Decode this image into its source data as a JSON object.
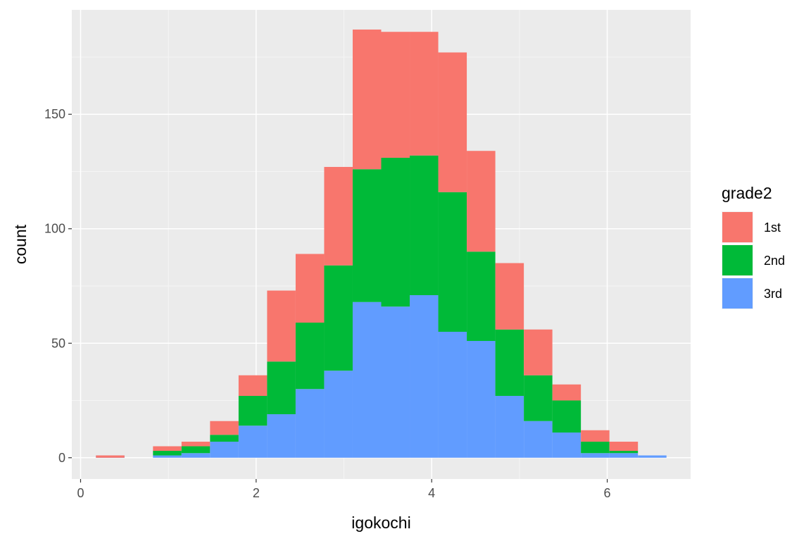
{
  "chart_data": {
    "type": "bar",
    "stacked": true,
    "histogram": true,
    "xlabel": "igokochi",
    "ylabel": "count",
    "xlim": [
      -0.1,
      6.95
    ],
    "ylim": [
      -9.3,
      195.6
    ],
    "x_ticks": [
      0,
      2,
      4,
      6
    ],
    "y_ticks": [
      0,
      50,
      100,
      150
    ],
    "x_tick_labels": [
      "0",
      "2",
      "4",
      "6"
    ],
    "y_tick_labels": [
      "0",
      "50",
      "100",
      "150"
    ],
    "bin_width": 0.325,
    "bins": [
      {
        "start": 0.175,
        "total": 1,
        "3rd": 1,
        "2nd": 0
      },
      {
        "start": 0.825,
        "total": 5,
        "3rd": 1,
        "2nd": 3
      },
      {
        "start": 1.15,
        "total": 7,
        "3rd": 2,
        "2nd": 5
      },
      {
        "start": 1.475,
        "total": 16,
        "3rd": 7,
        "2nd": 10
      },
      {
        "start": 1.8,
        "total": 36,
        "3rd": 14,
        "2nd": 27
      },
      {
        "start": 2.125,
        "total": 73,
        "3rd": 19,
        "2nd": 42
      },
      {
        "start": 2.45,
        "total": 89,
        "3rd": 30,
        "2nd": 59
      },
      {
        "start": 2.775,
        "total": 127,
        "3rd": 38,
        "2nd": 84
      },
      {
        "start": 3.1,
        "total": 187,
        "3rd": 68,
        "2nd": 126
      },
      {
        "start": 3.425,
        "total": 186,
        "3rd": 66,
        "2nd": 131
      },
      {
        "start": 3.75,
        "total": 186,
        "3rd": 71,
        "2nd": 132
      },
      {
        "start": 4.075,
        "total": 177,
        "3rd": 55,
        "2nd": 116
      },
      {
        "start": 4.4,
        "total": 134,
        "3rd": 51,
        "2nd": 90
      },
      {
        "start": 4.725,
        "total": 85,
        "3rd": 27,
        "2nd": 56
      },
      {
        "start": 5.05,
        "total": 56,
        "3rd": 16,
        "2nd": 36
      },
      {
        "start": 5.375,
        "total": 32,
        "3rd": 11,
        "2nd": 25
      },
      {
        "start": 5.7,
        "total": 12,
        "3rd": 2,
        "2nd": 7
      },
      {
        "start": 6.025,
        "total": 7,
        "3rd": 2,
        "2nd": 3
      },
      {
        "start": 6.35,
        "total": 1,
        "3rd": 1,
        "2nd": 1
      }
    ],
    "legend": {
      "title": "grade2",
      "position": "right",
      "entries": [
        {
          "key": "1st",
          "label": "1st",
          "color": "#F8766D"
        },
        {
          "key": "2nd",
          "label": "2nd",
          "color": "#00BA38"
        },
        {
          "key": "3rd",
          "label": "3rd",
          "color": "#619CFF"
        }
      ]
    },
    "grid": true
  },
  "colors": {
    "panel_background": "#EBEBEB",
    "grid_major": "#FFFFFF",
    "grid_minor": "#F5F5F5",
    "tick_text": "#4D4D4D",
    "tick_mark": "#333333"
  }
}
